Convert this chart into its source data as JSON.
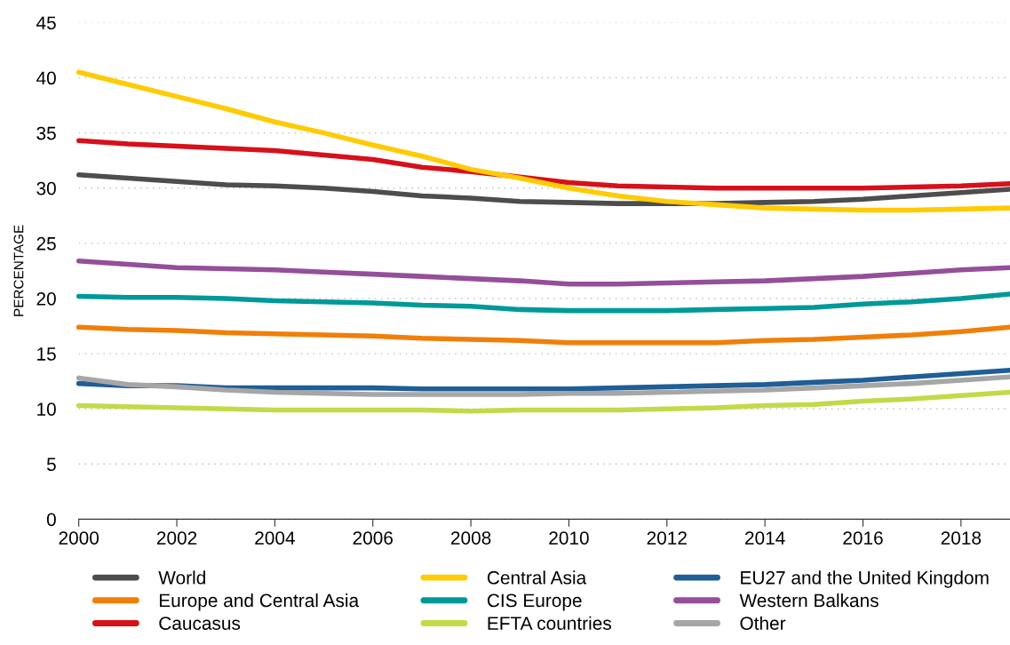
{
  "chart_data": {
    "type": "line",
    "ylabel": "PERCENTAGE",
    "x": [
      2000,
      2001,
      2002,
      2003,
      2004,
      2005,
      2006,
      2007,
      2008,
      2009,
      2010,
      2011,
      2012,
      2013,
      2014,
      2015,
      2016,
      2017,
      2018,
      2019
    ],
    "series": [
      {
        "name": "World",
        "color": "#4d4d4d",
        "values": [
          31.2,
          30.9,
          30.6,
          30.3,
          30.2,
          30.0,
          29.7,
          29.3,
          29.1,
          28.8,
          28.7,
          28.6,
          28.6,
          28.6,
          28.7,
          28.8,
          29.0,
          29.3,
          29.6,
          29.9
        ]
      },
      {
        "name": "Europe and Central Asia",
        "color": "#f07f09",
        "values": [
          17.4,
          17.2,
          17.1,
          16.9,
          16.8,
          16.7,
          16.6,
          16.4,
          16.3,
          16.2,
          16.0,
          16.0,
          16.0,
          16.0,
          16.2,
          16.3,
          16.5,
          16.7,
          17.0,
          17.4
        ]
      },
      {
        "name": "Caucasus",
        "color": "#d7101a",
        "values": [
          34.3,
          34.0,
          33.8,
          33.6,
          33.4,
          33.0,
          32.6,
          31.9,
          31.5,
          31.0,
          30.5,
          30.2,
          30.1,
          30.0,
          30.0,
          30.0,
          30.0,
          30.1,
          30.2,
          30.4
        ]
      },
      {
        "name": "Central Asia",
        "color": "#ffcb05",
        "values": [
          40.5,
          39.4,
          38.3,
          37.2,
          36.0,
          35.0,
          33.9,
          32.9,
          31.7,
          30.9,
          30.0,
          29.3,
          28.8,
          28.5,
          28.2,
          28.1,
          28.0,
          28.0,
          28.1,
          28.2
        ]
      },
      {
        "name": "CIS Europe",
        "color": "#00999a",
        "values": [
          20.2,
          20.1,
          20.1,
          20.0,
          19.8,
          19.7,
          19.6,
          19.4,
          19.3,
          19.0,
          18.9,
          18.9,
          18.9,
          19.0,
          19.1,
          19.2,
          19.5,
          19.7,
          20.0,
          20.4
        ]
      },
      {
        "name": "EFTA countries",
        "color": "#c4d94a",
        "values": [
          10.3,
          10.2,
          10.1,
          10.0,
          9.9,
          9.9,
          9.9,
          9.9,
          9.8,
          9.9,
          9.9,
          9.9,
          10.0,
          10.1,
          10.3,
          10.4,
          10.7,
          10.9,
          11.2,
          11.5
        ]
      },
      {
        "name": "EU27 and the United Kingdom",
        "color": "#1f5e96",
        "values": [
          12.3,
          12.1,
          12.1,
          11.9,
          11.9,
          11.9,
          11.9,
          11.8,
          11.8,
          11.8,
          11.8,
          11.9,
          12.0,
          12.1,
          12.2,
          12.4,
          12.6,
          12.9,
          13.2,
          13.5
        ]
      },
      {
        "name": "Western Balkans",
        "color": "#954f9a",
        "values": [
          23.4,
          23.1,
          22.8,
          22.7,
          22.6,
          22.4,
          22.2,
          22.0,
          21.8,
          21.6,
          21.3,
          21.3,
          21.4,
          21.5,
          21.6,
          21.8,
          22.0,
          22.3,
          22.6,
          22.8
        ]
      },
      {
        "name": "Other",
        "color": "#a6a6a6",
        "values": [
          12.8,
          12.2,
          12.0,
          11.7,
          11.5,
          11.4,
          11.3,
          11.3,
          11.3,
          11.3,
          11.4,
          11.4,
          11.5,
          11.6,
          11.7,
          11.9,
          12.1,
          12.3,
          12.6,
          12.9
        ]
      }
    ],
    "xlim": [
      2000,
      2019
    ],
    "xticks": [
      2000,
      2002,
      2004,
      2006,
      2008,
      2010,
      2012,
      2014,
      2016,
      2018
    ],
    "ylim": [
      0,
      45
    ],
    "yticks": [
      0,
      5,
      10,
      15,
      20,
      25,
      30,
      35,
      40,
      45
    ],
    "grid": "y",
    "legend": "bottom",
    "marker": "none",
    "line_style": "solid"
  }
}
